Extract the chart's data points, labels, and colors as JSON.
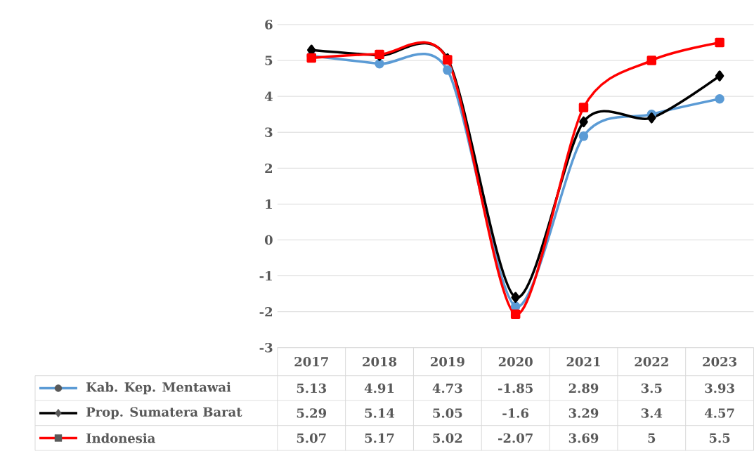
{
  "chart_data": {
    "type": "line",
    "categories": [
      "2017",
      "2018",
      "2019",
      "2020",
      "2021",
      "2022",
      "2023"
    ],
    "series": [
      {
        "name": "Kab. Kep. Mentawai",
        "color": "#5b9bd5",
        "marker": "circle",
        "values": [
          5.13,
          4.91,
          4.73,
          -1.85,
          2.89,
          3.5,
          3.93
        ]
      },
      {
        "name": "Prop. Sumatera Barat",
        "color": "#000000",
        "marker": "diamond",
        "values": [
          5.29,
          5.14,
          5.05,
          -1.6,
          3.29,
          3.4,
          4.57
        ]
      },
      {
        "name": "Indonesia",
        "color": "#ff0000",
        "marker": "square",
        "values": [
          5.07,
          5.17,
          5.02,
          -2.07,
          3.69,
          5,
          5.5
        ]
      }
    ],
    "ylim": [
      -3,
      6
    ],
    "yticks": [
      -3,
      -2,
      -1,
      0,
      1,
      2,
      3,
      4,
      5,
      6
    ],
    "grid": "y",
    "legend": "bottom left",
    "data_labels": true,
    "line_style": "solid"
  }
}
